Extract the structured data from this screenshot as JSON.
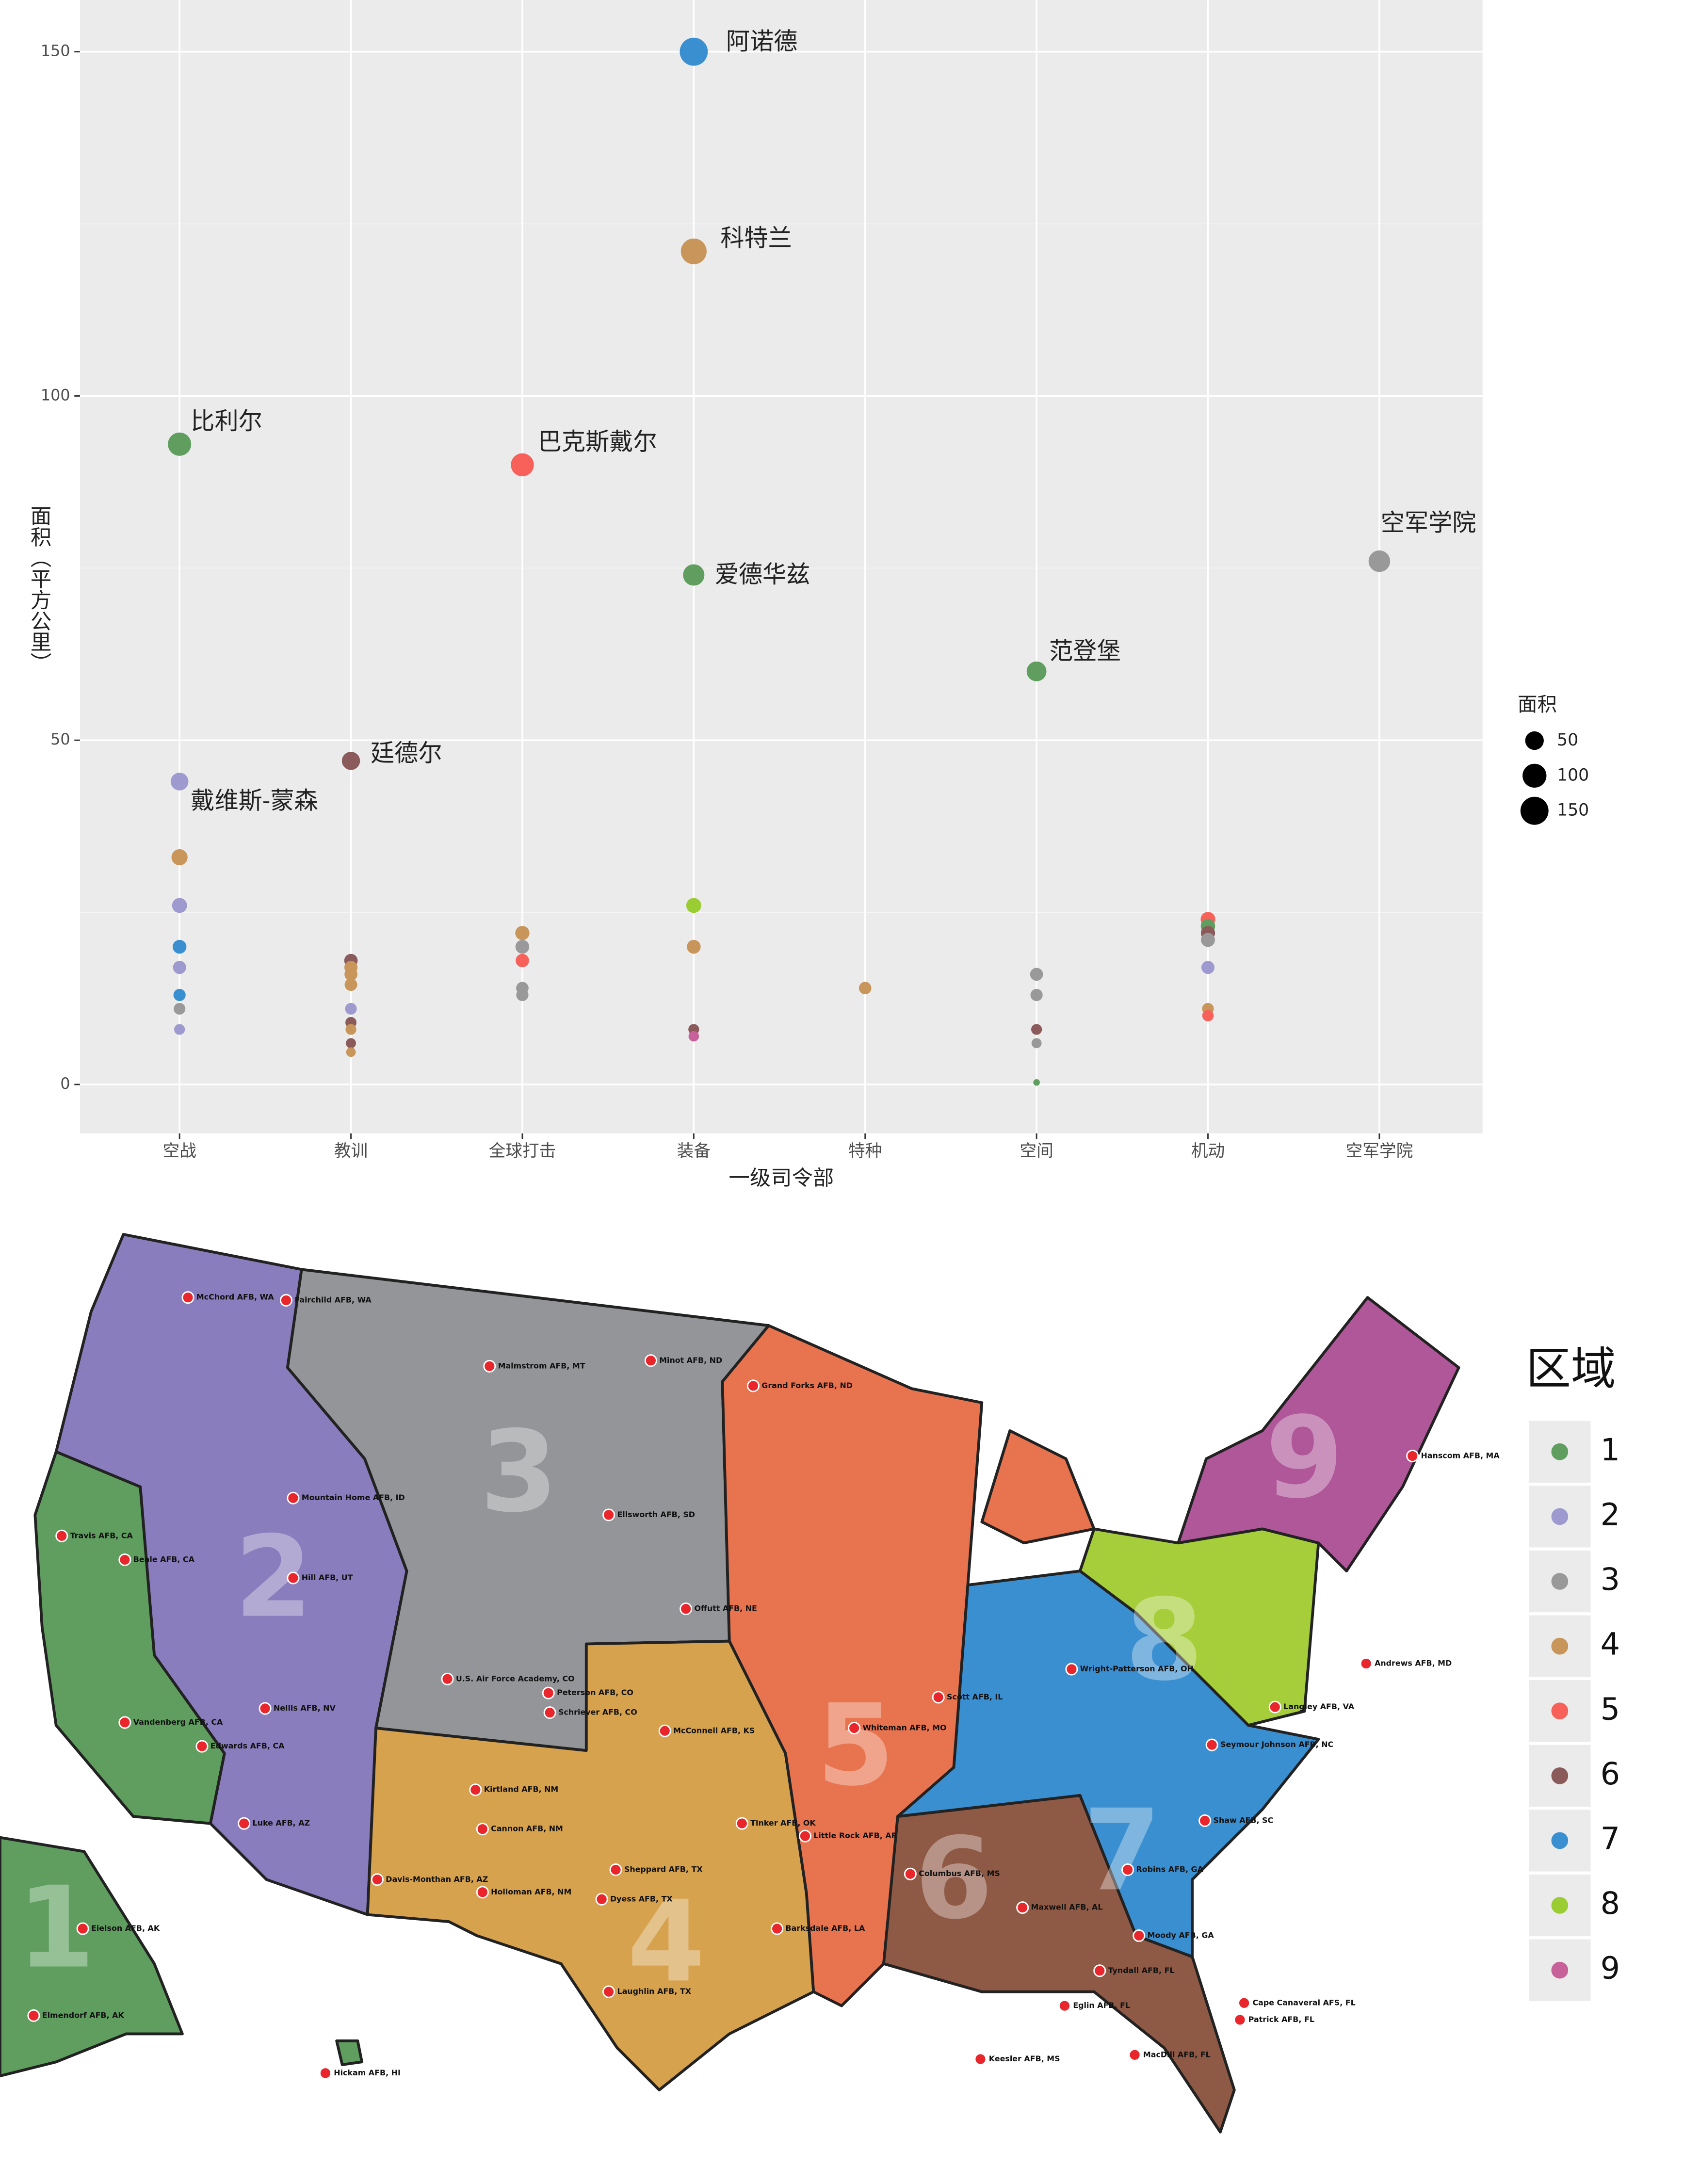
{
  "chart_data": {
    "type": "scatter",
    "x_label": "一级司令部",
    "y_label": "面积（平方公里）",
    "categories": [
      "空战",
      "教训",
      "全球打击",
      "装备",
      "特种",
      "空间",
      "机动",
      "空军学院"
    ],
    "ylim": [
      -7.1,
      157.5
    ],
    "yticks": [
      0,
      50,
      100,
      150
    ],
    "minor_yticks": [
      25,
      75,
      125
    ],
    "grid": true,
    "size_legend": {
      "title": "面积",
      "values": [
        50,
        100,
        150
      ]
    },
    "points": [
      {
        "x": "装备",
        "y": 150,
        "color": "#3a8fd0",
        "label": "阿诺德"
      },
      {
        "x": "装备",
        "y": 121,
        "color": "#c8955a",
        "label": "科特兰"
      },
      {
        "x": "空战",
        "y": 93,
        "color": "#5f9e5f",
        "label": "比利尔"
      },
      {
        "x": "全球打击",
        "y": 90,
        "color": "#f8605a",
        "label": "巴克斯戴尔"
      },
      {
        "x": "装备",
        "y": 74,
        "color": "#5f9e5f",
        "label": "爱德华兹"
      },
      {
        "x": "空军学院",
        "y": 76,
        "color": "#999999",
        "label": "空军学院"
      },
      {
        "x": "空间",
        "y": 60,
        "color": "#5f9e5f",
        "label": "范登堡"
      },
      {
        "x": "教训",
        "y": 47,
        "color": "#8b5a5a",
        "label": "廷德尔"
      },
      {
        "x": "空战",
        "y": 44,
        "color": "#9e9ad0",
        "label": "戴维斯-蒙森"
      },
      {
        "x": "空战",
        "y": 33,
        "color": "#c8955a"
      },
      {
        "x": "空战",
        "y": 26,
        "color": "#9e9ad0"
      },
      {
        "x": "空战",
        "y": 20,
        "color": "#3a8fd0"
      },
      {
        "x": "空战",
        "y": 17,
        "color": "#9e9ad0"
      },
      {
        "x": "空战",
        "y": 13,
        "color": "#3a8fd0"
      },
      {
        "x": "空战",
        "y": 11,
        "color": "#999999"
      },
      {
        "x": "空战",
        "y": 8,
        "color": "#9e9ad0"
      },
      {
        "x": "教训",
        "y": 18,
        "color": "#8b5a5a"
      },
      {
        "x": "教训",
        "y": 17,
        "color": "#c8955a"
      },
      {
        "x": "教训",
        "y": 16,
        "color": "#c8955a"
      },
      {
        "x": "教训",
        "y": 14.5,
        "color": "#c8955a"
      },
      {
        "x": "教训",
        "y": 11,
        "color": "#9e9ad0"
      },
      {
        "x": "教训",
        "y": 9,
        "color": "#8b5a5a"
      },
      {
        "x": "教训",
        "y": 8,
        "color": "#c8955a"
      },
      {
        "x": "教训",
        "y": 6,
        "color": "#8b5a5a"
      },
      {
        "x": "教训",
        "y": 4.7,
        "color": "#c8955a"
      },
      {
        "x": "全球打击",
        "y": 22,
        "color": "#c8955a"
      },
      {
        "x": "全球打击",
        "y": 20,
        "color": "#999999"
      },
      {
        "x": "全球打击",
        "y": 18,
        "color": "#f8605a"
      },
      {
        "x": "全球打击",
        "y": 14,
        "color": "#999999"
      },
      {
        "x": "全球打击",
        "y": 13,
        "color": "#999999"
      },
      {
        "x": "装备",
        "y": 26,
        "color": "#9acd32"
      },
      {
        "x": "装备",
        "y": 20,
        "color": "#c8955a"
      },
      {
        "x": "装备",
        "y": 8,
        "color": "#8b5a5a"
      },
      {
        "x": "装备",
        "y": 7,
        "color": "#c8609a"
      },
      {
        "x": "特种",
        "y": 14,
        "color": "#c8955a"
      },
      {
        "x": "空间",
        "y": 16,
        "color": "#999999"
      },
      {
        "x": "空间",
        "y": 13,
        "color": "#999999"
      },
      {
        "x": "空间",
        "y": 8,
        "color": "#8b5a5a"
      },
      {
        "x": "空间",
        "y": 6,
        "color": "#999999"
      },
      {
        "x": "空间",
        "y": 0.3,
        "color": "#5f9e5f"
      },
      {
        "x": "机动",
        "y": 24,
        "color": "#f8605a"
      },
      {
        "x": "机动",
        "y": 23,
        "color": "#5f9e5f"
      },
      {
        "x": "机动",
        "y": 22,
        "color": "#8b5a5a"
      },
      {
        "x": "机动",
        "y": 21,
        "color": "#999999"
      },
      {
        "x": "机动",
        "y": 17,
        "color": "#9e9ad0"
      },
      {
        "x": "机动",
        "y": 11,
        "color": "#c8955a"
      },
      {
        "x": "机动",
        "y": 10,
        "color": "#f8605a"
      }
    ]
  },
  "map": {
    "legend_title": "区域",
    "legend": [
      {
        "name": "1",
        "color": "#5f9e5f"
      },
      {
        "name": "2",
        "color": "#9e9ad0"
      },
      {
        "name": "3",
        "color": "#999999"
      },
      {
        "name": "4",
        "color": "#c8955a"
      },
      {
        "name": "5",
        "color": "#f8605a"
      },
      {
        "name": "6",
        "color": "#8b5a5a"
      },
      {
        "name": "7",
        "color": "#3a8fd0"
      },
      {
        "name": "8",
        "color": "#9acd32"
      },
      {
        "name": "9",
        "color": "#c8609a"
      }
    ],
    "region_numbers": [
      "1",
      "2",
      "3",
      "4",
      "5",
      "6",
      "7",
      "8",
      "9"
    ],
    "bases": [
      "McChord AFB, WA",
      "Fairchild AFB, WA",
      "Malmstrom AFB, MT",
      "Minot AFB, ND",
      "Grand Forks AFB, ND",
      "Ellsworth AFB, SD",
      "Offutt AFB, NE",
      "Travis AFB, CA",
      "Beale AFB, CA",
      "Vandenberg AFB, CA",
      "Edwards AFB, CA",
      "Nellis AFB, NV",
      "Hill AFB, UT",
      "Mountain Home AFB, ID",
      "Luke AFB, AZ",
      "Davis-Monthan AFB, AZ",
      "Kirtland AFB, NM",
      "Cannon AFB, NM",
      "Holloman AFB, NM",
      "Peterson AFB, CO",
      "Schriever AFB, CO",
      "U.S. Air Force Academy, CO",
      "McConnell AFB, KS",
      "Tinker AFB, OK",
      "Sheppard AFB, TX",
      "Dyess AFB, TX",
      "Laughlin AFB, TX",
      "Barksdale AFB, LA",
      "Little Rock AFB, AR",
      "Whiteman AFB, MO",
      "Scott AFB, IL",
      "Wright-Patterson AFB, OH",
      "Maxwell AFB, AL",
      "Eglin AFB, FL",
      "Tyndall AFB, FL",
      "MacDill AFB, FL",
      "Patrick AFB, FL",
      "Cape Canaveral AFS, FL",
      "Langley AFB, VA",
      "Seymour Johnson AFB, NC",
      "Shaw AFB, SC",
      "Robins AFB, GA",
      "Moody AFB, GA",
      "Hanscom AFB, MA",
      "Andrews AFB, MD",
      "Keesler AFB, MS",
      "Columbus AFB, MS",
      "Hickam AFB, HI",
      "Eielson AFB, AK",
      "Elmendorf AFB, AK"
    ]
  }
}
